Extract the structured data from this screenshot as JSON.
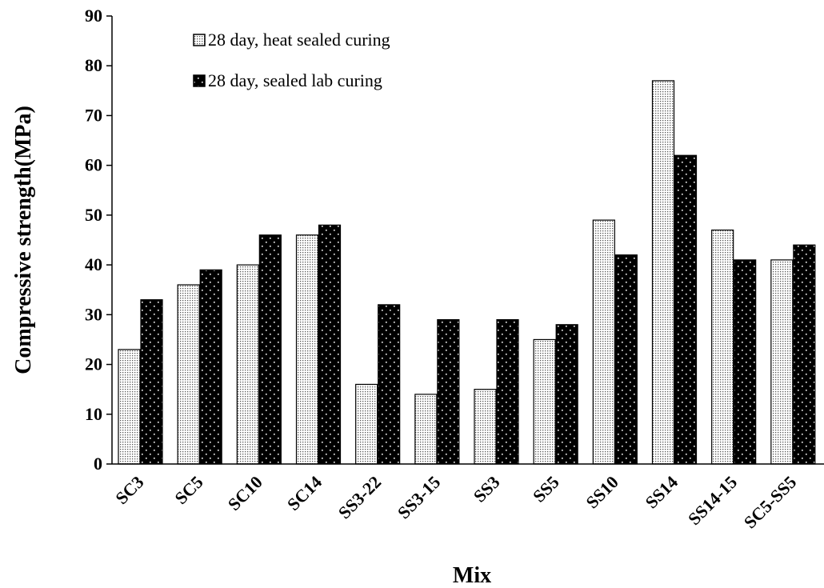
{
  "chart_data": {
    "type": "bar",
    "categories": [
      "SC3",
      "SC5",
      "SC10",
      "SC14",
      "SS3-22",
      "SS3-15",
      "SS3",
      "SS5",
      "SS10",
      "SS14",
      "SS14-15",
      "SC5-SS5"
    ],
    "series": [
      {
        "name": "28 day, heat sealed curing",
        "values": [
          23,
          36,
          40,
          46,
          16,
          14,
          15,
          25,
          49,
          77,
          47,
          41
        ],
        "fill": "#ffffff",
        "dot_color": "#555555",
        "pattern": "dense-dots"
      },
      {
        "name": "28 day, sealed lab curing",
        "values": [
          33,
          39,
          46,
          48,
          32,
          29,
          29,
          28,
          42,
          62,
          41,
          44
        ],
        "fill": "#000000",
        "dot_color": "#ffffff",
        "pattern": "sparse-dots"
      }
    ],
    "xlabel": "Mix",
    "ylabel": "Compressive strength(MPa)",
    "ylim": [
      0,
      90
    ],
    "yticks": [
      0,
      10,
      20,
      30,
      40,
      50,
      60,
      70,
      80,
      90
    ],
    "grid": false,
    "legend_position": "top-left"
  }
}
